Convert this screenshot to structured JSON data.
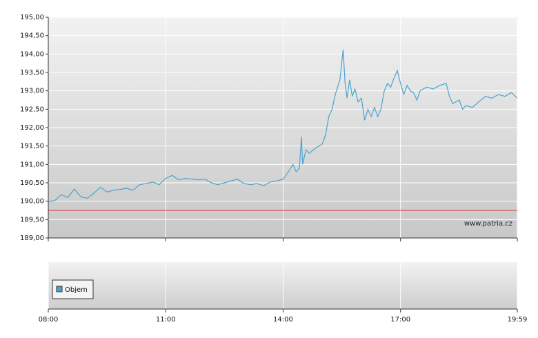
{
  "chart_data": {
    "type": "line",
    "series": [
      {
        "color": "#4aa3cf",
        "x": [
          "08:00",
          "08:10",
          "08:20",
          "08:30",
          "08:40",
          "08:50",
          "09:00",
          "09:10",
          "09:20",
          "09:30",
          "09:40",
          "09:50",
          "10:00",
          "10:10",
          "10:20",
          "10:30",
          "10:40",
          "10:50",
          "11:00",
          "11:10",
          "11:20",
          "11:30",
          "11:40",
          "11:50",
          "12:00",
          "12:10",
          "12:20",
          "12:30",
          "12:40",
          "12:50",
          "13:00",
          "13:10",
          "13:20",
          "13:30",
          "13:40",
          "13:50",
          "14:00",
          "14:05",
          "14:10",
          "14:15",
          "14:20",
          "14:25",
          "14:28",
          "14:30",
          "14:35",
          "14:40",
          "14:50",
          "15:00",
          "15:05",
          "15:10",
          "15:15",
          "15:20",
          "15:27",
          "15:32",
          "15:35",
          "15:38",
          "15:42",
          "15:46",
          "15:50",
          "15:55",
          "16:00",
          "16:05",
          "16:10",
          "16:15",
          "16:20",
          "16:25",
          "16:30",
          "16:35",
          "16:40",
          "16:45",
          "16:50",
          "16:55",
          "17:00",
          "17:05",
          "17:10",
          "17:15",
          "17:20",
          "17:25",
          "17:30",
          "17:40",
          "17:50",
          "18:00",
          "18:10",
          "18:15",
          "18:20",
          "18:30",
          "18:35",
          "18:40",
          "18:50",
          "19:00",
          "19:10",
          "19:20",
          "19:30",
          "19:40",
          "19:50",
          "19:59"
        ],
        "values": [
          189.99,
          190.02,
          190.18,
          190.1,
          190.33,
          190.12,
          190.08,
          190.22,
          190.38,
          190.25,
          190.3,
          190.32,
          190.35,
          190.3,
          190.45,
          190.48,
          190.52,
          190.45,
          190.62,
          190.7,
          190.58,
          190.62,
          190.6,
          190.58,
          190.6,
          190.5,
          190.45,
          190.5,
          190.55,
          190.6,
          190.48,
          190.45,
          190.48,
          190.42,
          190.52,
          190.55,
          190.6,
          190.72,
          190.85,
          191.0,
          190.8,
          190.9,
          191.75,
          191.0,
          191.4,
          191.3,
          191.45,
          191.55,
          191.8,
          192.3,
          192.5,
          192.9,
          193.3,
          194.12,
          193.2,
          192.8,
          193.3,
          192.85,
          193.05,
          192.7,
          192.8,
          192.2,
          192.5,
          192.3,
          192.55,
          192.3,
          192.5,
          193.0,
          193.2,
          193.1,
          193.35,
          193.55,
          193.2,
          192.9,
          193.15,
          193.0,
          192.95,
          192.75,
          193.0,
          193.1,
          193.05,
          193.15,
          193.2,
          192.85,
          192.65,
          192.75,
          192.5,
          192.6,
          192.55,
          192.7,
          192.85,
          192.8,
          192.9,
          192.85,
          192.95,
          192.8
        ]
      }
    ],
    "reference_line": {
      "value": 189.75,
      "color": "#d9534f"
    },
    "ylim": [
      189,
      195
    ],
    "yticks": [
      {
        "value": 189,
        "label": "189,00"
      },
      {
        "value": 189.5,
        "label": "189,50"
      },
      {
        "value": 190,
        "label": "190,00"
      },
      {
        "value": 190.5,
        "label": "190,50"
      },
      {
        "value": 191,
        "label": "191,00"
      },
      {
        "value": 191.5,
        "label": "191,50"
      },
      {
        "value": 192,
        "label": "192,00"
      },
      {
        "value": 192.5,
        "label": "192,50"
      },
      {
        "value": 193,
        "label": "193,00"
      },
      {
        "value": 193.5,
        "label": "193,50"
      },
      {
        "value": 194,
        "label": "194,00"
      },
      {
        "value": 194.5,
        "label": "194,50"
      },
      {
        "value": 195,
        "label": "195,00"
      }
    ],
    "xlim": [
      "08:00",
      "19:59"
    ],
    "xticks": [
      "08:00",
      "11:00",
      "14:00",
      "17:00",
      "19:59"
    ],
    "grid": true,
    "watermark": "www.patria.cz",
    "volume_legend": "Objem",
    "volume_color": "#4aa3cf"
  }
}
